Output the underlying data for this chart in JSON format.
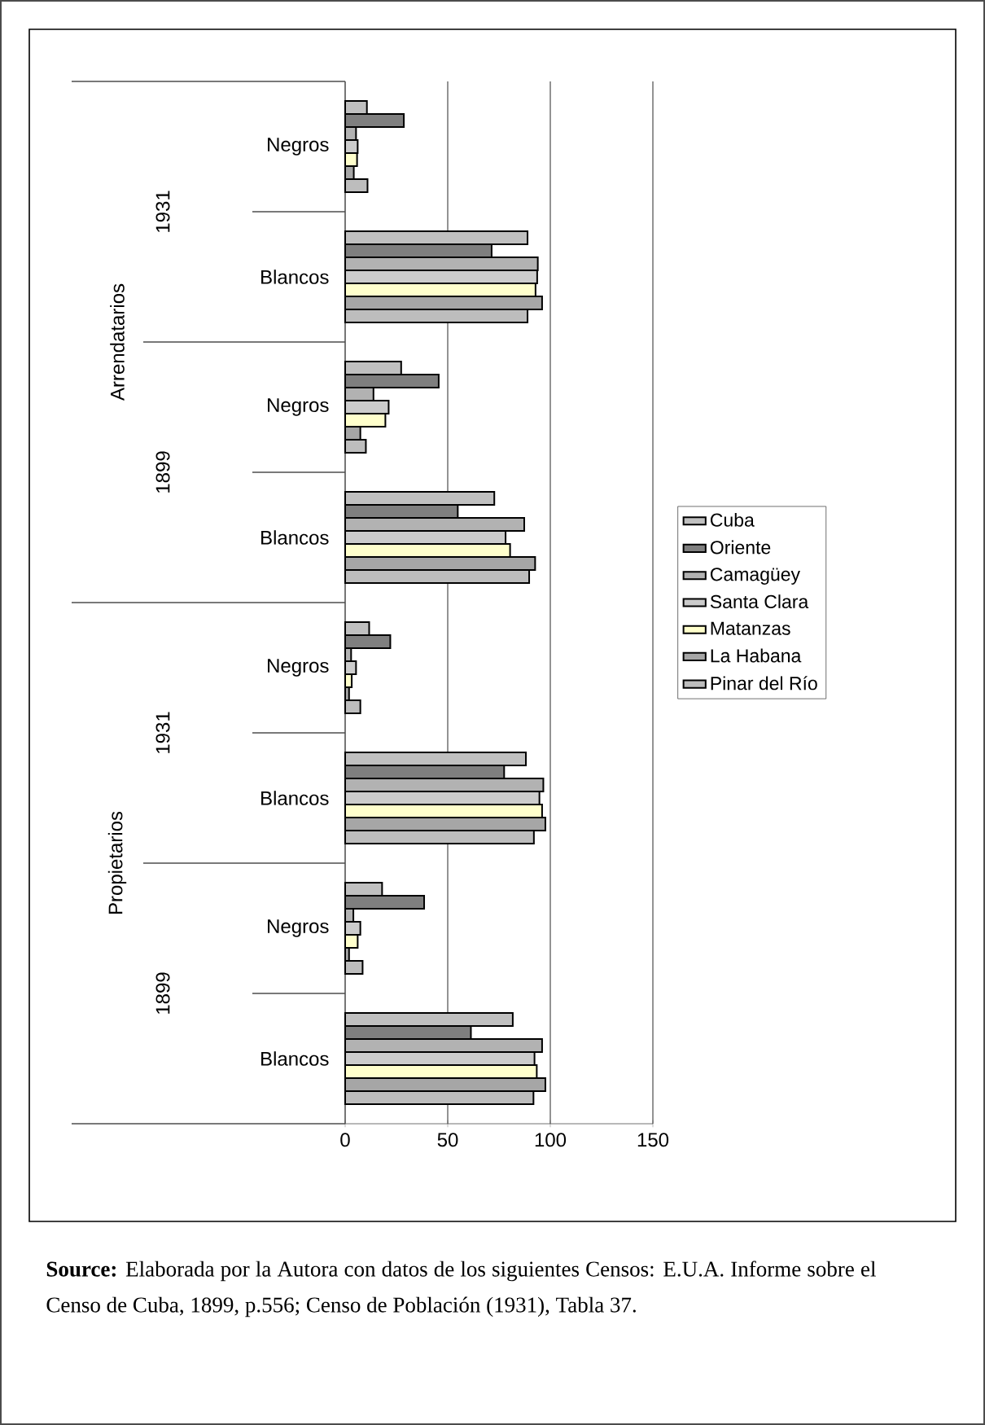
{
  "chart_data": {
    "type": "bar",
    "orientation": "horizontal",
    "categories": [
      "Negros",
      "Blancos",
      "Negros",
      "Blancos",
      "Negros",
      "Blancos",
      "Negros",
      "Blancos"
    ],
    "series": [
      {
        "name": "Cuba",
        "color": "#c0c0c0",
        "values": [
          10.6,
          88.9,
          27.3,
          72.7,
          11.7,
          88.1,
          18.0,
          81.7
        ]
      },
      {
        "name": "Oriente",
        "color": "#7f7f7f",
        "values": [
          28.6,
          71.4,
          45.6,
          54.9,
          22.0,
          77.5,
          38.5,
          61.3
        ]
      },
      {
        "name": "Camagüey",
        "color": "#b2b2b2",
        "values": [
          5.3,
          93.9,
          13.8,
          87.3,
          2.9,
          96.6,
          4.0,
          96.0
        ]
      },
      {
        "name": "Santa Clara",
        "color": "#cccccc",
        "values": [
          6.1,
          93.6,
          21.2,
          78.2,
          5.3,
          94.7,
          7.4,
          92.3
        ]
      },
      {
        "name": "Matanzas",
        "color": "#ffffcc",
        "values": [
          5.8,
          92.8,
          19.6,
          80.4,
          3.2,
          96.0,
          6.1,
          93.4
        ]
      },
      {
        "name": "La Habana",
        "color": "#a6a6a6",
        "values": [
          4.2,
          96.0,
          7.4,
          92.6,
          1.9,
          97.6,
          1.9,
          97.6
        ]
      },
      {
        "name": "Pinar del Río",
        "color": "#bdbdbd",
        "values": [
          10.9,
          88.9,
          10.1,
          89.7,
          7.4,
          92.0,
          8.5,
          91.8
        ]
      }
    ],
    "xlim": [
      0,
      150
    ],
    "xticks": [
      0,
      50,
      100,
      150
    ],
    "grid": "x",
    "legend": "right",
    "annotations": [
      "1931",
      "1899",
      "1931",
      "1899",
      "Arrendatarios",
      "Propietarios",
      "**Source:** Elaborada por la Autora con datos de los siguientes Censos: E.U.A. Informe sobre el Censo de Cuba, 1899, p.556; Censo de Población (1931), Tabla 37."
    ]
  }
}
